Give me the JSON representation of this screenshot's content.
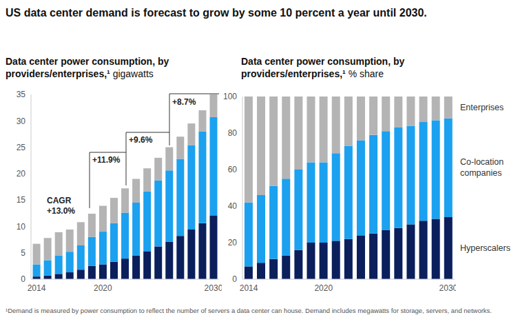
{
  "title": "US data center demand is forecast to grow by some 10 percent a year until 2030.",
  "footnote": "¹Demand is measured by power consumption to reflect the number of servers a data center can house. Demand includes megawatts for storage, servers, and networks.",
  "chart_data": [
    {
      "type": "bar",
      "title": "Data center power consumption, by providers/enterprises,¹",
      "y_label": "gigawatts",
      "categories": [
        "2014",
        null,
        null,
        null,
        null,
        null,
        "2020",
        null,
        null,
        null,
        null,
        null,
        null,
        null,
        null,
        null,
        "2030"
      ],
      "series": [
        {
          "name": "Hyperscalers",
          "color": "#0a1f5c",
          "values": [
            0.5,
            0.7,
            1.0,
            1.3,
            1.8,
            2.5,
            2.8,
            3.3,
            3.9,
            4.5,
            5.3,
            6.2,
            7.1,
            8.2,
            9.4,
            10.6,
            12.0
          ]
        },
        {
          "name": "Co-location companies",
          "color": "#1ba1ef",
          "values": [
            2.3,
            2.9,
            3.5,
            3.9,
            4.6,
            5.5,
            6.2,
            7.3,
            8.7,
            10.0,
            11.3,
            12.5,
            13.5,
            14.6,
            16.0,
            17.4,
            18.7
          ]
        },
        {
          "name": "Enterprises",
          "color": "#b4b4b4",
          "values": [
            3.9,
            4.2,
            4.4,
            4.2,
            4.4,
            4.4,
            4.9,
            4.8,
            4.6,
            4.5,
            4.4,
            4.3,
            4.4,
            4.2,
            4.1,
            4.0,
            4.3
          ]
        }
      ],
      "ylim": [
        0,
        35
      ],
      "yticks": [
        0,
        5,
        10,
        15,
        20,
        25,
        30,
        35
      ],
      "stacked": true,
      "grid": false,
      "annotations": [
        "CAGR",
        "+13.0%",
        "+11.9%",
        "+9.6%",
        "+8.7%"
      ]
    },
    {
      "type": "bar",
      "title": "Data center power consumption, by providers/enterprises,¹",
      "y_label": "% share",
      "categories": [
        "2014",
        null,
        null,
        null,
        null,
        null,
        "2020",
        null,
        null,
        null,
        null,
        null,
        null,
        null,
        null,
        null,
        "2030"
      ],
      "series": [
        {
          "name": "Hyperscalers",
          "color": "#0a1f5c",
          "values": [
            7,
            9,
            11,
            13,
            16,
            20,
            20,
            21,
            22,
            24,
            25,
            27,
            28,
            30,
            32,
            33,
            34
          ]
        },
        {
          "name": "Co-location companies",
          "color": "#1ba1ef",
          "values": [
            35,
            37,
            40,
            42,
            44,
            44,
            44,
            48,
            51,
            52,
            54,
            54,
            55,
            54,
            54,
            54,
            54
          ]
        },
        {
          "name": "Enterprises",
          "color": "#b4b4b4",
          "values": [
            58,
            54,
            49,
            45,
            40,
            36,
            36,
            31,
            27,
            24,
            21,
            19,
            17,
            16,
            14,
            13,
            12
          ]
        }
      ],
      "ylim": [
        0,
        100
      ],
      "yticks": [
        0,
        20,
        40,
        60,
        80,
        100
      ],
      "stacked": true,
      "grid": false,
      "legend": "right"
    }
  ]
}
